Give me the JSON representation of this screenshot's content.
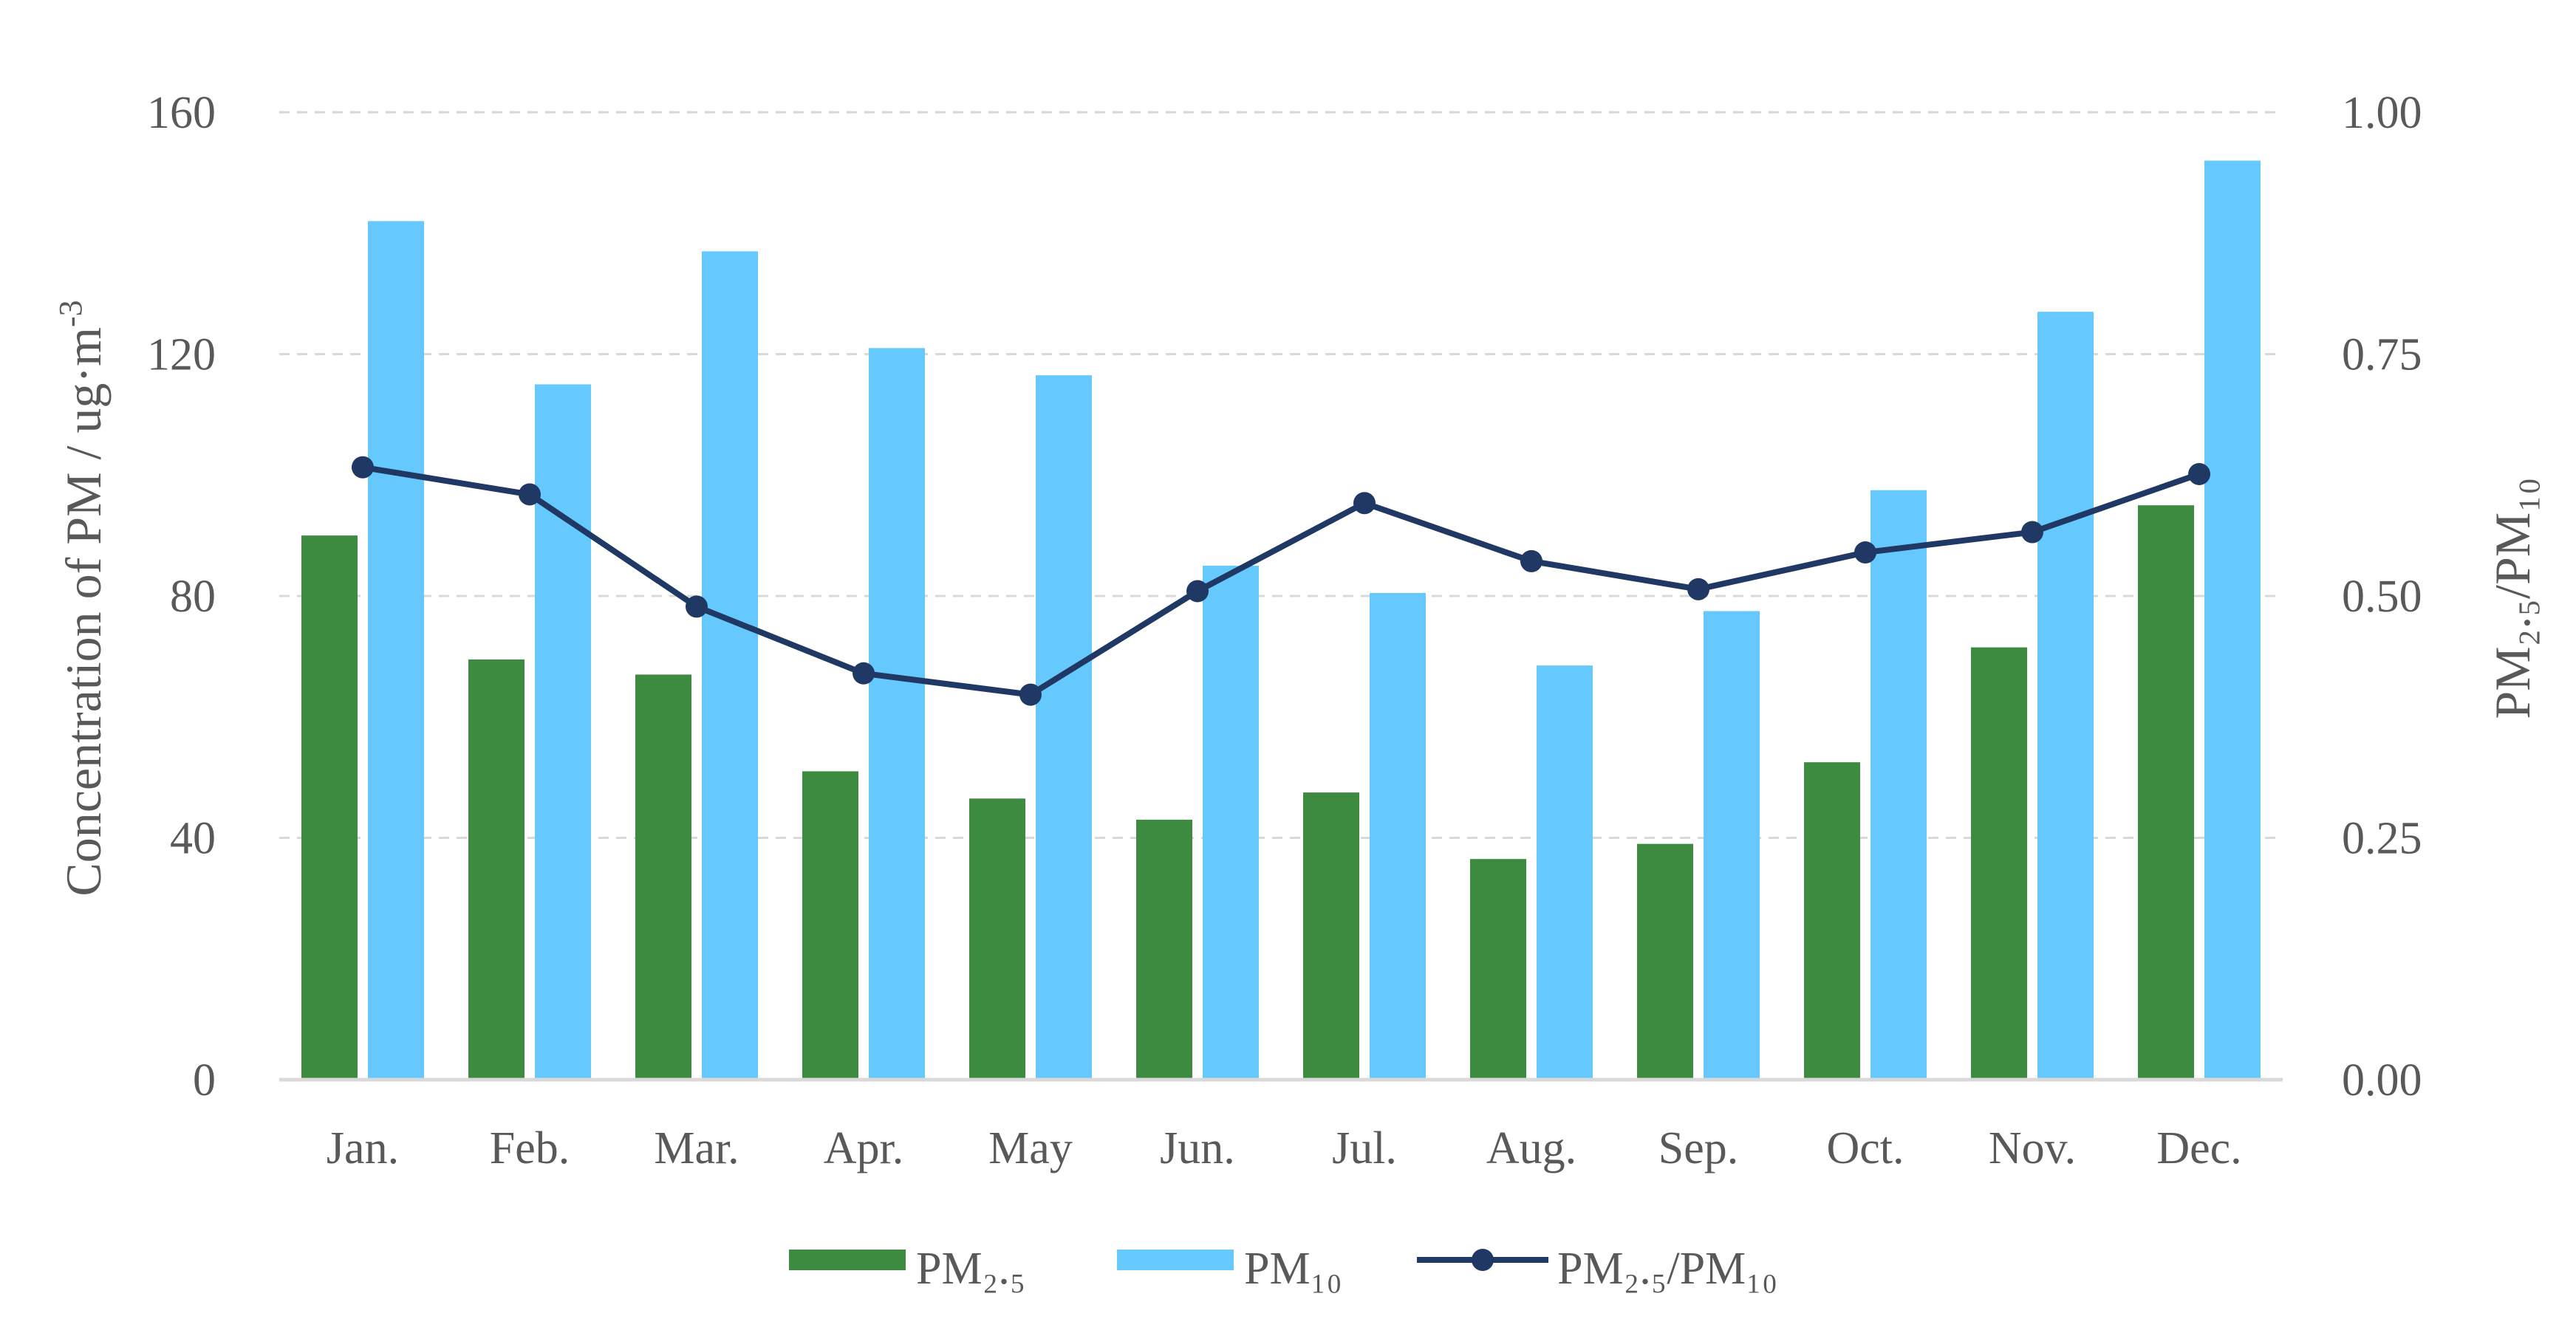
{
  "chart_data": {
    "type": "bar",
    "categories": [
      "Jan.",
      "Feb.",
      "Mar.",
      "Apr.",
      "May",
      "Jun.",
      "Jul.",
      "Aug.",
      "Sep.",
      "Oct.",
      "Nov.",
      "Dec."
    ],
    "series": [
      {
        "name": "PM₂.₅",
        "type": "bar",
        "axis": "left",
        "color": "#3d8b40",
        "values": [
          90,
          69.5,
          67,
          51,
          46.5,
          43,
          47.5,
          36.5,
          39,
          52.5,
          71.5,
          95
        ]
      },
      {
        "name": "PM₁₀",
        "type": "bar",
        "axis": "left",
        "color": "#66c9fe",
        "values": [
          142,
          115,
          137,
          121,
          116.5,
          85,
          80.5,
          68.5,
          77.5,
          97.5,
          127,
          152
        ]
      },
      {
        "name": "PM₂.₅/PM₁₀",
        "type": "line",
        "axis": "right",
        "color": "#1f3864",
        "values": [
          0.633,
          0.605,
          0.489,
          0.42,
          0.398,
          0.505,
          0.596,
          0.536,
          0.507,
          0.545,
          0.566,
          0.626
        ]
      }
    ],
    "ylabel": "Concentration of PM / ug·m",
    "ylabel_sup": "-3",
    "y2label": "PM₂.₅/PM₁₀",
    "ylim": [
      0,
      160
    ],
    "y2lim": [
      0,
      1
    ],
    "yticks": [
      "0",
      "40",
      "80",
      "120",
      "160"
    ],
    "y2ticks": [
      "0.00",
      "0.25",
      "0.50",
      "0.75",
      "1.00"
    ],
    "grid": true,
    "legend_position": "bottom"
  }
}
